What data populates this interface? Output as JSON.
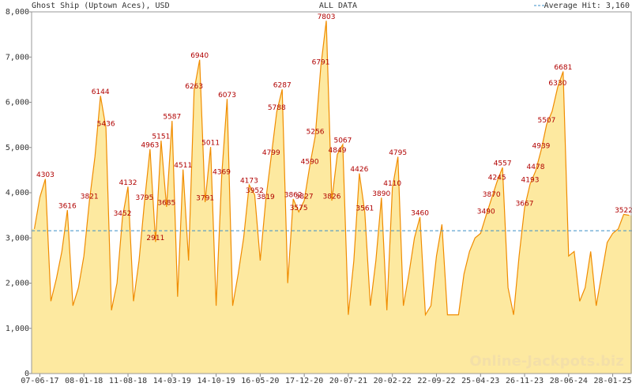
{
  "chart_data": {
    "type": "area",
    "title": "Ghost Ship (Uptown Aces), USD",
    "subtitle": "ALL DATA",
    "watermark": "Online-Jackpots.biz",
    "average": {
      "label": "Average Hit: 3,160",
      "value": 3160,
      "color": "#3a8fc8"
    },
    "color": "#f08c00",
    "fill": "#fde9a0",
    "label_color": "#b00000",
    "grid": false,
    "categories": [
      null,
      "07-06-17",
      null,
      null,
      null,
      null,
      null,
      null,
      null,
      "08-01-18",
      null,
      null,
      null,
      null,
      null,
      null,
      null,
      "11-08-18",
      null,
      null,
      null,
      null,
      null,
      null,
      null,
      "14-03-19",
      null,
      null,
      null,
      null,
      null,
      null,
      null,
      "14-10-19",
      null,
      null,
      null,
      null,
      null,
      null,
      null,
      "16-05-20",
      null,
      null,
      null,
      null,
      null,
      null,
      null,
      "17-12-20",
      null,
      null,
      null,
      null,
      null,
      null,
      null,
      "20-07-21",
      null,
      null,
      null,
      null,
      null,
      null,
      null,
      "20-02-22",
      null,
      null,
      null,
      null,
      null,
      null,
      null,
      "22-09-22",
      null,
      null,
      null,
      null,
      null,
      null,
      null,
      "25-04-23",
      null,
      null,
      null,
      null,
      null,
      null,
      null,
      "26-11-23",
      null,
      null,
      null,
      null,
      null,
      null,
      null,
      "28-06-24",
      null,
      null,
      null,
      null,
      null,
      null,
      null,
      "28-01-25",
      null,
      null,
      null
    ],
    "values": [
      3200,
      3900,
      4303,
      1600,
      2100,
      2700,
      3616,
      1500,
      1900,
      2600,
      3821,
      4800,
      6144,
      5436,
      1400,
      2000,
      3452,
      4132,
      1600,
      2500,
      3795,
      4963,
      2911,
      5151,
      3685,
      5587,
      1700,
      4511,
      2500,
      6263,
      6940,
      3791,
      5011,
      1500,
      4369,
      6073,
      1500,
      2200,
      3000,
      4173,
      3952,
      2500,
      3819,
      4799,
      5788,
      6287,
      2000,
      3862,
      3575,
      3827,
      4590,
      5256,
      6791,
      7803,
      3826,
      4849,
      5067,
      1300,
      2500,
      4426,
      3561,
      1500,
      2500,
      3890,
      1400,
      4110,
      4795,
      1500,
      2200,
      3000,
      3460,
      1300,
      1500,
      2600,
      3300,
      1300,
      1300,
      1300,
      2200,
      2700,
      3000,
      3100,
      3490,
      3870,
      4245,
      4557,
      1900,
      1300,
      2600,
      3667,
      4193,
      4478,
      4939,
      5507,
      5800,
      6330,
      6681,
      2600,
      2700,
      1600,
      1900,
      2700,
      1500,
      2200,
      2900,
      3100,
      3200,
      3522,
      3500
    ],
    "value_labels": [
      null,
      null,
      "4303",
      null,
      null,
      null,
      "3616",
      null,
      null,
      null,
      "3821",
      null,
      "6144",
      "5436",
      null,
      null,
      "3452",
      "4132",
      null,
      null,
      "3795",
      "4963",
      "2911",
      "5151",
      "3685",
      "5587",
      null,
      "4511",
      null,
      "6263",
      "6940",
      "3791",
      "5011",
      null,
      "4369",
      "6073",
      null,
      null,
      null,
      "4173",
      "3952",
      null,
      "3819",
      "4799",
      "5788",
      "6287",
      null,
      "3862",
      "3575",
      "3827",
      "4590",
      "5256",
      "6791",
      "7803",
      "3826",
      "4849",
      "5067",
      null,
      null,
      "4426",
      "3561",
      null,
      null,
      "3890",
      null,
      "4110",
      "4795",
      null,
      null,
      null,
      "3460",
      null,
      null,
      null,
      null,
      null,
      null,
      null,
      null,
      null,
      null,
      null,
      "3490",
      "3870",
      "4245",
      "4557",
      null,
      null,
      null,
      "3667",
      "4193",
      "4478",
      "4939",
      "5507",
      null,
      "6330",
      "6681",
      null,
      null,
      null,
      null,
      null,
      null,
      null,
      null,
      null,
      null,
      "3522",
      null
    ],
    "ylim": [
      0,
      8000
    ],
    "yticks": [
      0,
      {
        "value": 1000,
        "label": "1,000"
      },
      {
        "value": 2000,
        "label": "2,000"
      },
      {
        "value": 3000,
        "label": "3,000"
      },
      {
        "value": 4000,
        "label": "4,000"
      },
      {
        "value": 5000,
        "label": "5,000"
      },
      {
        "value": 6000,
        "label": "6,000"
      },
      {
        "value": 7000,
        "label": "7,000"
      },
      {
        "value": 8000,
        "label": "8,000"
      }
    ]
  }
}
